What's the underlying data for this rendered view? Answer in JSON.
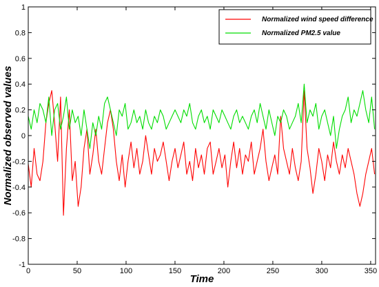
{
  "chart_data": {
    "type": "line",
    "title": "",
    "xlabel": "Time",
    "ylabel": "Normalized observed values",
    "xlim": [
      0,
      355
    ],
    "ylim": [
      -1,
      1
    ],
    "x_ticks": [
      0,
      50,
      100,
      150,
      200,
      250,
      300,
      350
    ],
    "y_ticks": [
      -1,
      -0.8,
      -0.6,
      -0.4,
      -0.2,
      0,
      0.2,
      0.4,
      0.6,
      0.8,
      1
    ],
    "grid": false,
    "legend_position": "top-right",
    "series": [
      {
        "name": "Normalized wind speed difference",
        "color": "#ff0000",
        "x": [
          0,
          3,
          6,
          9,
          12,
          15,
          18,
          21,
          24,
          27,
          30,
          33,
          36,
          39,
          42,
          45,
          48,
          51,
          54,
          57,
          60,
          63,
          66,
          69,
          72,
          75,
          78,
          81,
          84,
          87,
          90,
          93,
          96,
          99,
          102,
          105,
          108,
          111,
          114,
          117,
          120,
          123,
          126,
          129,
          132,
          135,
          138,
          141,
          144,
          147,
          150,
          153,
          156,
          159,
          162,
          165,
          168,
          171,
          174,
          177,
          180,
          183,
          186,
          189,
          192,
          195,
          198,
          201,
          204,
          207,
          210,
          213,
          216,
          219,
          222,
          225,
          228,
          231,
          234,
          237,
          240,
          243,
          246,
          249,
          252,
          255,
          258,
          261,
          264,
          267,
          270,
          273,
          276,
          279,
          282,
          285,
          288,
          291,
          294,
          297,
          300,
          303,
          306,
          309,
          312,
          315,
          318,
          321,
          324,
          327,
          330,
          333,
          336,
          339,
          342,
          345,
          348,
          351,
          354
        ],
        "values": [
          -0.22,
          -0.4,
          -0.1,
          -0.3,
          -0.35,
          -0.2,
          0.1,
          0.25,
          0.35,
          0.1,
          -0.2,
          0.3,
          -0.62,
          -0.1,
          0.2,
          -0.35,
          -0.2,
          -0.55,
          -0.4,
          -0.1,
          0.05,
          -0.3,
          -0.15,
          0.05,
          -0.2,
          -0.3,
          -0.1,
          0.1,
          0.2,
          0.05,
          -0.2,
          -0.35,
          -0.15,
          -0.4,
          -0.2,
          -0.05,
          -0.25,
          -0.1,
          -0.3,
          -0.2,
          0.0,
          -0.15,
          -0.3,
          -0.1,
          -0.2,
          -0.15,
          -0.05,
          -0.2,
          -0.35,
          -0.2,
          -0.1,
          -0.25,
          -0.15,
          -0.05,
          -0.3,
          -0.2,
          -0.35,
          -0.1,
          -0.25,
          -0.15,
          -0.3,
          -0.1,
          -0.05,
          -0.3,
          -0.2,
          -0.1,
          -0.25,
          -0.15,
          -0.4,
          -0.2,
          -0.05,
          -0.25,
          -0.1,
          -0.3,
          -0.15,
          -0.2,
          -0.05,
          -0.3,
          -0.2,
          -0.1,
          0.05,
          -0.2,
          -0.35,
          -0.25,
          -0.15,
          -0.3,
          0.15,
          -0.1,
          -0.2,
          -0.3,
          -0.1,
          -0.25,
          -0.35,
          -0.2,
          0.35,
          -0.1,
          -0.25,
          -0.45,
          -0.3,
          -0.1,
          -0.2,
          -0.35,
          -0.15,
          -0.25,
          -0.05,
          -0.2,
          -0.3,
          -0.15,
          -0.25,
          -0.1,
          -0.2,
          -0.3,
          -0.45,
          -0.55,
          -0.45,
          -0.3,
          -0.2,
          -0.1,
          -0.3
        ]
      },
      {
        "name": "Normalized PM2.5 value",
        "color": "#00dd00",
        "x": [
          0,
          3,
          6,
          9,
          12,
          15,
          18,
          21,
          24,
          27,
          30,
          33,
          36,
          39,
          42,
          45,
          48,
          51,
          54,
          57,
          60,
          63,
          66,
          69,
          72,
          75,
          78,
          81,
          84,
          87,
          90,
          93,
          96,
          99,
          102,
          105,
          108,
          111,
          114,
          117,
          120,
          123,
          126,
          129,
          132,
          135,
          138,
          141,
          144,
          147,
          150,
          153,
          156,
          159,
          162,
          165,
          168,
          171,
          174,
          177,
          180,
          183,
          186,
          189,
          192,
          195,
          198,
          201,
          204,
          207,
          210,
          213,
          216,
          219,
          222,
          225,
          228,
          231,
          234,
          237,
          240,
          243,
          246,
          249,
          252,
          255,
          258,
          261,
          264,
          267,
          270,
          273,
          276,
          279,
          282,
          285,
          288,
          291,
          294,
          297,
          300,
          303,
          306,
          309,
          312,
          315,
          318,
          321,
          324,
          327,
          330,
          333,
          336,
          339,
          342,
          345,
          348,
          351,
          354
        ],
        "values": [
          0.15,
          0.05,
          0.2,
          0.1,
          0.25,
          0.2,
          0.1,
          0.3,
          0.0,
          0.2,
          0.25,
          0.05,
          0.15,
          0.3,
          0.05,
          0.2,
          0.1,
          0.15,
          0.0,
          0.2,
          0.05,
          -0.1,
          0.1,
          0.0,
          0.15,
          0.05,
          0.25,
          0.3,
          0.2,
          0.1,
          0.0,
          0.2,
          0.15,
          0.25,
          0.05,
          0.1,
          0.2,
          0.1,
          0.15,
          0.05,
          0.2,
          0.1,
          0.05,
          0.15,
          0.1,
          0.2,
          0.15,
          0.05,
          0.1,
          0.15,
          0.2,
          0.15,
          0.1,
          0.2,
          0.15,
          0.25,
          0.1,
          0.05,
          0.15,
          0.2,
          0.1,
          0.15,
          0.05,
          0.2,
          0.15,
          0.1,
          0.2,
          0.15,
          0.1,
          0.05,
          0.15,
          0.2,
          0.1,
          0.15,
          0.1,
          0.05,
          0.15,
          0.2,
          0.1,
          0.25,
          0.15,
          0.05,
          0.2,
          0.1,
          0.0,
          0.15,
          0.1,
          0.2,
          0.15,
          0.05,
          0.1,
          0.15,
          0.25,
          0.1,
          0.4,
          0.1,
          0.2,
          0.15,
          0.25,
          0.05,
          0.15,
          0.2,
          0.1,
          0.0,
          0.15,
          -0.1,
          0.05,
          0.15,
          0.2,
          0.3,
          0.1,
          0.2,
          0.15,
          0.25,
          0.35,
          0.2,
          0.1,
          0.3,
          0.05
        ]
      }
    ]
  }
}
